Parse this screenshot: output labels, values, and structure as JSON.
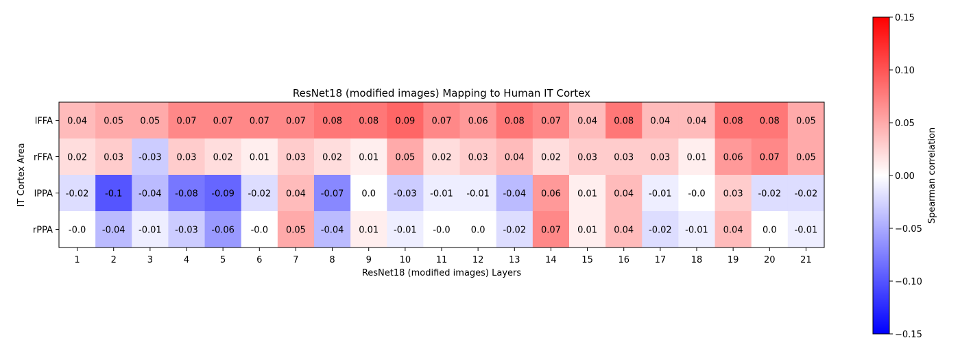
{
  "chart_data": {
    "type": "heatmap",
    "title": "ResNet18 (modified images) Mapping to Human IT Cortex",
    "xlabel": "ResNet18 (modified images) Layers",
    "ylabel": "IT Cortex Area",
    "x_categories": [
      "1",
      "2",
      "3",
      "4",
      "5",
      "6",
      "7",
      "8",
      "9",
      "10",
      "11",
      "12",
      "13",
      "14",
      "15",
      "16",
      "17",
      "18",
      "19",
      "20",
      "21"
    ],
    "y_categories": [
      "lFFA",
      "rFFA",
      "lPPA",
      "rPPA"
    ],
    "values": [
      [
        0.04,
        0.05,
        0.05,
        0.07,
        0.07,
        0.07,
        0.07,
        0.08,
        0.08,
        0.09,
        0.07,
        0.06,
        0.08,
        0.07,
        0.04,
        0.08,
        0.04,
        0.04,
        0.08,
        0.08,
        0.05
      ],
      [
        0.02,
        0.03,
        -0.03,
        0.03,
        0.02,
        0.01,
        0.03,
        0.02,
        0.01,
        0.05,
        0.02,
        0.03,
        0.04,
        0.02,
        0.03,
        0.03,
        0.03,
        0.01,
        0.06,
        0.07,
        0.05
      ],
      [
        -0.02,
        -0.1,
        -0.04,
        -0.08,
        -0.09,
        -0.02,
        0.04,
        -0.07,
        0.0,
        -0.03,
        -0.01,
        -0.01,
        -0.04,
        0.06,
        0.01,
        0.04,
        -0.01,
        -0.0,
        0.03,
        -0.02,
        -0.02
      ],
      [
        -0.0,
        -0.04,
        -0.01,
        -0.03,
        -0.06,
        -0.0,
        0.05,
        -0.04,
        0.01,
        -0.01,
        -0.0,
        0.0,
        -0.02,
        0.07,
        0.01,
        0.04,
        -0.02,
        -0.01,
        0.04,
        0.0,
        -0.01
      ]
    ],
    "cell_labels": [
      [
        "0.04",
        "0.05",
        "0.05",
        "0.07",
        "0.07",
        "0.07",
        "0.07",
        "0.08",
        "0.08",
        "0.09",
        "0.07",
        "0.06",
        "0.08",
        "0.07",
        "0.04",
        "0.08",
        "0.04",
        "0.04",
        "0.08",
        "0.08",
        "0.05"
      ],
      [
        "0.02",
        "0.03",
        "-0.03",
        "0.03",
        "0.02",
        "0.01",
        "0.03",
        "0.02",
        "0.01",
        "0.05",
        "0.02",
        "0.03",
        "0.04",
        "0.02",
        "0.03",
        "0.03",
        "0.03",
        "0.01",
        "0.06",
        "0.07",
        "0.05"
      ],
      [
        "-0.02",
        "-0.1",
        "-0.04",
        "-0.08",
        "-0.09",
        "-0.02",
        "0.04",
        "-0.07",
        "0.0",
        "-0.03",
        "-0.01",
        "-0.01",
        "-0.04",
        "0.06",
        "0.01",
        "0.04",
        "-0.01",
        "-0.0",
        "0.03",
        "-0.02",
        "-0.02"
      ],
      [
        "-0.0",
        "-0.04",
        "-0.01",
        "-0.03",
        "-0.06",
        "-0.0",
        "0.05",
        "-0.04",
        "0.01",
        "-0.01",
        "-0.0",
        "0.0",
        "-0.02",
        "0.07",
        "0.01",
        "0.04",
        "-0.02",
        "-0.01",
        "0.04",
        "0.0",
        "-0.01"
      ]
    ],
    "colormap": "bwr",
    "vmin": -0.15,
    "vmax": 0.15,
    "colorbar": {
      "label": "Spearman correlation",
      "ticks": [
        0.15,
        0.1,
        0.05,
        0.0,
        -0.05,
        -0.1,
        -0.15
      ],
      "tick_labels": [
        "0.15",
        "0.10",
        "0.05",
        "0.00",
        "−0.05",
        "−0.10",
        "−0.15"
      ]
    },
    "grid": false
  }
}
